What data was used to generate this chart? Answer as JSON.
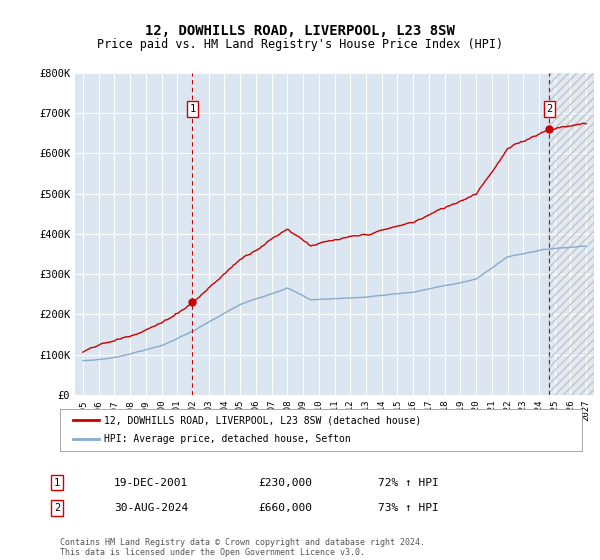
{
  "title": "12, DOWHILLS ROAD, LIVERPOOL, L23 8SW",
  "subtitle": "Price paid vs. HM Land Registry's House Price Index (HPI)",
  "legend_line1": "12, DOWHILLS ROAD, LIVERPOOL, L23 8SW (detached house)",
  "legend_line2": "HPI: Average price, detached house, Sefton",
  "annotation1_label": "1",
  "annotation1_date": "19-DEC-2001",
  "annotation1_price": "£230,000",
  "annotation1_hpi": "72% ↑ HPI",
  "annotation2_label": "2",
  "annotation2_date": "30-AUG-2024",
  "annotation2_price": "£660,000",
  "annotation2_hpi": "73% ↑ HPI",
  "footer": "Contains HM Land Registry data © Crown copyright and database right 2024.\nThis data is licensed under the Open Government Licence v3.0.",
  "red_color": "#cc0000",
  "blue_color": "#88aacc",
  "plot_bg_color": "#dce6f1",
  "ylim": [
    0,
    800000
  ],
  "yticks": [
    0,
    100000,
    200000,
    300000,
    400000,
    500000,
    600000,
    700000,
    800000
  ],
  "ytick_labels": [
    "£0",
    "£100K",
    "£200K",
    "£300K",
    "£400K",
    "£500K",
    "£600K",
    "£700K",
    "£800K"
  ],
  "sale1_x": 2001.97,
  "sale1_y": 230000,
  "sale2_x": 2024.66,
  "sale2_y": 660000,
  "xmin": 1994.5,
  "xmax": 2027.5
}
